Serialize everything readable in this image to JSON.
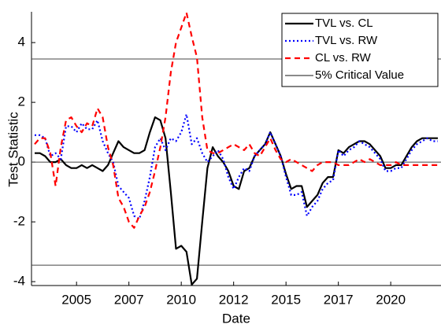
{
  "chart_data": {
    "type": "line",
    "xlabel": "Date",
    "ylabel": "Test Statistic",
    "x": [
      2003.0,
      2003.25,
      2003.5,
      2003.75,
      2004.0,
      2004.25,
      2004.5,
      2004.75,
      2005.0,
      2005.25,
      2005.5,
      2005.75,
      2006.0,
      2006.25,
      2006.5,
      2006.75,
      2007.0,
      2007.25,
      2007.5,
      2007.75,
      2008.0,
      2008.25,
      2008.5,
      2008.75,
      2009.0,
      2009.25,
      2009.5,
      2009.75,
      2010.0,
      2010.25,
      2010.5,
      2010.75,
      2011.0,
      2011.25,
      2011.5,
      2011.75,
      2012.0,
      2012.25,
      2012.5,
      2012.75,
      2013.0,
      2013.25,
      2013.5,
      2013.75,
      2014.0,
      2014.25,
      2014.5,
      2014.75,
      2015.0,
      2015.25,
      2015.5,
      2015.75,
      2016.0,
      2016.25,
      2016.5,
      2016.75,
      2017.0,
      2017.25,
      2017.5,
      2017.75,
      2018.0,
      2018.25,
      2018.5,
      2018.75,
      2019.0,
      2019.25,
      2019.5,
      2019.75,
      2020.0,
      2020.25,
      2020.5,
      2020.75,
      2021.0,
      2021.25,
      2021.5,
      2021.75,
      2022.0,
      2022.25
    ],
    "series": [
      {
        "name": "TVL vs. CL",
        "color": "#000000",
        "style": "solid",
        "values": [
          0.3,
          0.3,
          0.2,
          0.0,
          0.0,
          0.1,
          -0.1,
          -0.2,
          -0.2,
          -0.1,
          -0.2,
          -0.1,
          -0.2,
          -0.3,
          -0.1,
          0.3,
          0.7,
          0.5,
          0.4,
          0.3,
          0.3,
          0.4,
          1.0,
          1.5,
          1.4,
          0.8,
          -1.0,
          -2.9,
          -2.8,
          -3.0,
          -4.1,
          -3.9,
          -2.0,
          -0.2,
          0.5,
          0.2,
          0.0,
          -0.3,
          -0.8,
          -0.9,
          -0.3,
          -0.2,
          0.2,
          0.4,
          0.6,
          1.0,
          0.6,
          0.2,
          -0.4,
          -0.9,
          -0.8,
          -0.8,
          -1.5,
          -1.3,
          -1.1,
          -0.7,
          -0.5,
          -0.5,
          0.4,
          0.3,
          0.5,
          0.6,
          0.7,
          0.7,
          0.6,
          0.4,
          0.2,
          -0.2,
          -0.2,
          -0.1,
          -0.1,
          0.2,
          0.5,
          0.7,
          0.8,
          0.8,
          0.8,
          0.8
        ]
      },
      {
        "name": "TVL vs. RW",
        "color": "#0000ff",
        "style": "dotted",
        "values": [
          0.9,
          0.9,
          0.8,
          0.2,
          0.3,
          0.1,
          1.2,
          1.2,
          1.0,
          1.3,
          1.1,
          1.1,
          1.4,
          0.7,
          0.3,
          0.0,
          -0.8,
          -1.0,
          -1.2,
          -1.8,
          -1.9,
          -1.3,
          -0.5,
          0.5,
          0.8,
          0.4,
          0.8,
          0.7,
          1.0,
          1.6,
          0.6,
          0.8,
          0.3,
          0.0,
          0.2,
          0.4,
          0.1,
          -0.5,
          -0.9,
          -0.5,
          -0.2,
          -0.3,
          0.2,
          0.4,
          0.6,
          1.0,
          0.6,
          0.2,
          -0.5,
          -1.1,
          -1.1,
          -1.0,
          -1.8,
          -1.5,
          -1.3,
          -0.9,
          -0.7,
          -0.6,
          0.4,
          0.2,
          0.4,
          0.5,
          0.7,
          0.6,
          0.5,
          0.3,
          0.1,
          -0.3,
          -0.3,
          -0.2,
          -0.2,
          0.1,
          0.4,
          0.6,
          0.7,
          0.8,
          0.7,
          0.7
        ]
      },
      {
        "name": "CL vs. RW",
        "color": "#ff0000",
        "style": "dashed",
        "values": [
          0.6,
          0.8,
          0.8,
          0.3,
          -0.8,
          0.5,
          1.4,
          1.5,
          1.2,
          1.0,
          1.3,
          1.2,
          1.8,
          1.5,
          0.5,
          -0.1,
          -1.2,
          -1.5,
          -2.0,
          -2.2,
          -1.8,
          -1.5,
          -1.0,
          -0.3,
          0.5,
          1.5,
          3.0,
          4.0,
          4.5,
          5.0,
          4.2,
          3.5,
          1.5,
          0.4,
          0.3,
          0.3,
          0.4,
          0.5,
          0.6,
          0.5,
          0.4,
          0.6,
          0.3,
          0.2,
          0.5,
          0.8,
          0.4,
          0.1,
          0.0,
          0.1,
          0.0,
          -0.1,
          -0.2,
          -0.3,
          -0.1,
          0.0,
          0.0,
          0.0,
          -0.1,
          -0.1,
          -0.1,
          0.0,
          0.1,
          0.0,
          0.1,
          0.0,
          -0.1,
          -0.1,
          -0.1,
          0.0,
          -0.1,
          -0.1,
          -0.1,
          -0.1,
          -0.1,
          -0.1,
          -0.1,
          -0.1
        ]
      }
    ],
    "critical_value": {
      "name": "5% Critical Value",
      "color": "#444444",
      "values": [
        3.45,
        -3.45
      ]
    },
    "zero_line": true,
    "xlim": [
      2002.85,
      2022.4
    ],
    "ylim": [
      -4.13,
      5.03
    ],
    "xticks": [
      {
        "value": 2005,
        "label": "2005"
      },
      {
        "value": 2007.5,
        "label": "2007"
      },
      {
        "value": 2010,
        "label": "2010"
      },
      {
        "value": 2012.5,
        "label": "2012"
      },
      {
        "value": 2015,
        "label": "2015"
      },
      {
        "value": 2017.5,
        "label": "2017"
      },
      {
        "value": 2020,
        "label": "2020"
      }
    ],
    "yticks": [
      -4,
      -2,
      0,
      2,
      4
    ],
    "legend": "upper right"
  }
}
